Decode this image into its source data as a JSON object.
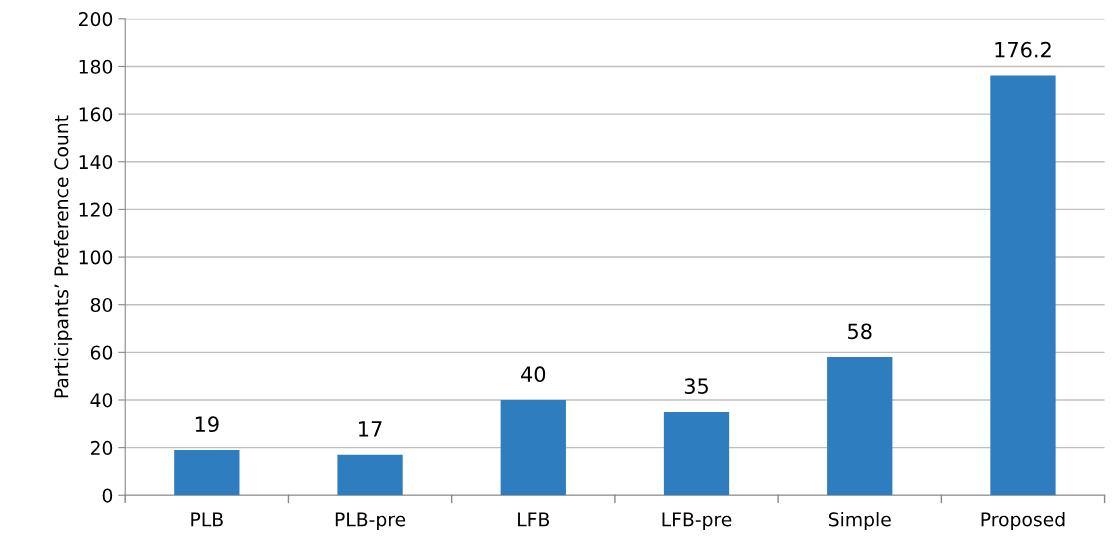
{
  "chart_data": {
    "type": "bar",
    "ylabel": "Participants’ Preference Count",
    "categories": [
      "PLB",
      "PLB-pre",
      "LFB",
      "LFB-pre",
      "Simple",
      "Proposed"
    ],
    "values": [
      19,
      17,
      40,
      35,
      58,
      176.2
    ],
    "color": "#2e7dbf",
    "ylim": [
      0,
      200
    ],
    "yticks": [
      0,
      20,
      40,
      60,
      80,
      100,
      120,
      140,
      160,
      180,
      200
    ],
    "grid": "y",
    "data_labels": true,
    "legend": false
  }
}
